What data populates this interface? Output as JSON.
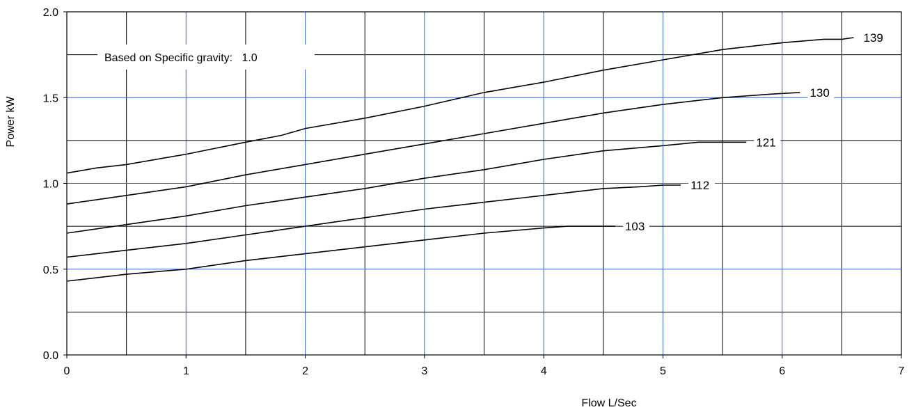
{
  "chart_data": {
    "type": "line",
    "xlabel": "Flow L/Sec",
    "ylabel": "Power kW",
    "xlim": [
      0,
      7
    ],
    "ylim": [
      0,
      2
    ],
    "x_ticks": [
      "0",
      "1",
      "2",
      "3",
      "4",
      "5",
      "6",
      "7"
    ],
    "y_ticks": [
      "0.0",
      "0.5",
      "1.0",
      "1.5",
      "2.0"
    ],
    "grid": true,
    "grid_colors": {
      "major": "#3366dd",
      "minor": "#000000"
    },
    "line_color": "#000000",
    "note": "Based on Specific gravity:   1.0",
    "series": [
      {
        "name": "139",
        "x": [
          0,
          0.25,
          0.5,
          1.0,
          1.5,
          1.8,
          2.0,
          2.5,
          3.0,
          3.5,
          4.0,
          4.5,
          5.0,
          5.5,
          6.0,
          6.35,
          6.5,
          6.6
        ],
        "y": [
          1.06,
          1.09,
          1.11,
          1.17,
          1.24,
          1.28,
          1.32,
          1.38,
          1.45,
          1.53,
          1.59,
          1.66,
          1.72,
          1.78,
          1.82,
          1.84,
          1.84,
          1.85
        ]
      },
      {
        "name": "130",
        "x": [
          0,
          0.5,
          1.0,
          1.5,
          2.0,
          2.5,
          3.0,
          3.5,
          4.0,
          4.5,
          5.0,
          5.5,
          5.9,
          6.15
        ],
        "y": [
          0.88,
          0.93,
          0.98,
          1.05,
          1.11,
          1.17,
          1.23,
          1.29,
          1.35,
          1.41,
          1.46,
          1.5,
          1.52,
          1.53
        ]
      },
      {
        "name": "121",
        "x": [
          0,
          0.5,
          1.0,
          1.5,
          2.0,
          2.5,
          3.0,
          3.5,
          4.0,
          4.5,
          5.0,
          5.3,
          5.5,
          5.7
        ],
        "y": [
          0.71,
          0.76,
          0.81,
          0.87,
          0.92,
          0.97,
          1.03,
          1.08,
          1.14,
          1.19,
          1.22,
          1.24,
          1.24,
          1.24
        ]
      },
      {
        "name": "112",
        "x": [
          0,
          0.5,
          1.0,
          1.5,
          2.0,
          2.5,
          3.0,
          3.5,
          4.0,
          4.5,
          4.8,
          5.0,
          5.15
        ],
        "y": [
          0.57,
          0.61,
          0.65,
          0.7,
          0.75,
          0.8,
          0.85,
          0.89,
          0.93,
          0.97,
          0.98,
          0.99,
          0.99
        ]
      },
      {
        "name": "103",
        "x": [
          0,
          0.25,
          0.5,
          1.0,
          1.5,
          2.0,
          2.5,
          3.0,
          3.5,
          4.0,
          4.2,
          4.4,
          4.6
        ],
        "y": [
          0.43,
          0.45,
          0.47,
          0.5,
          0.55,
          0.59,
          0.63,
          0.67,
          0.71,
          0.74,
          0.75,
          0.75,
          0.75
        ]
      }
    ]
  }
}
